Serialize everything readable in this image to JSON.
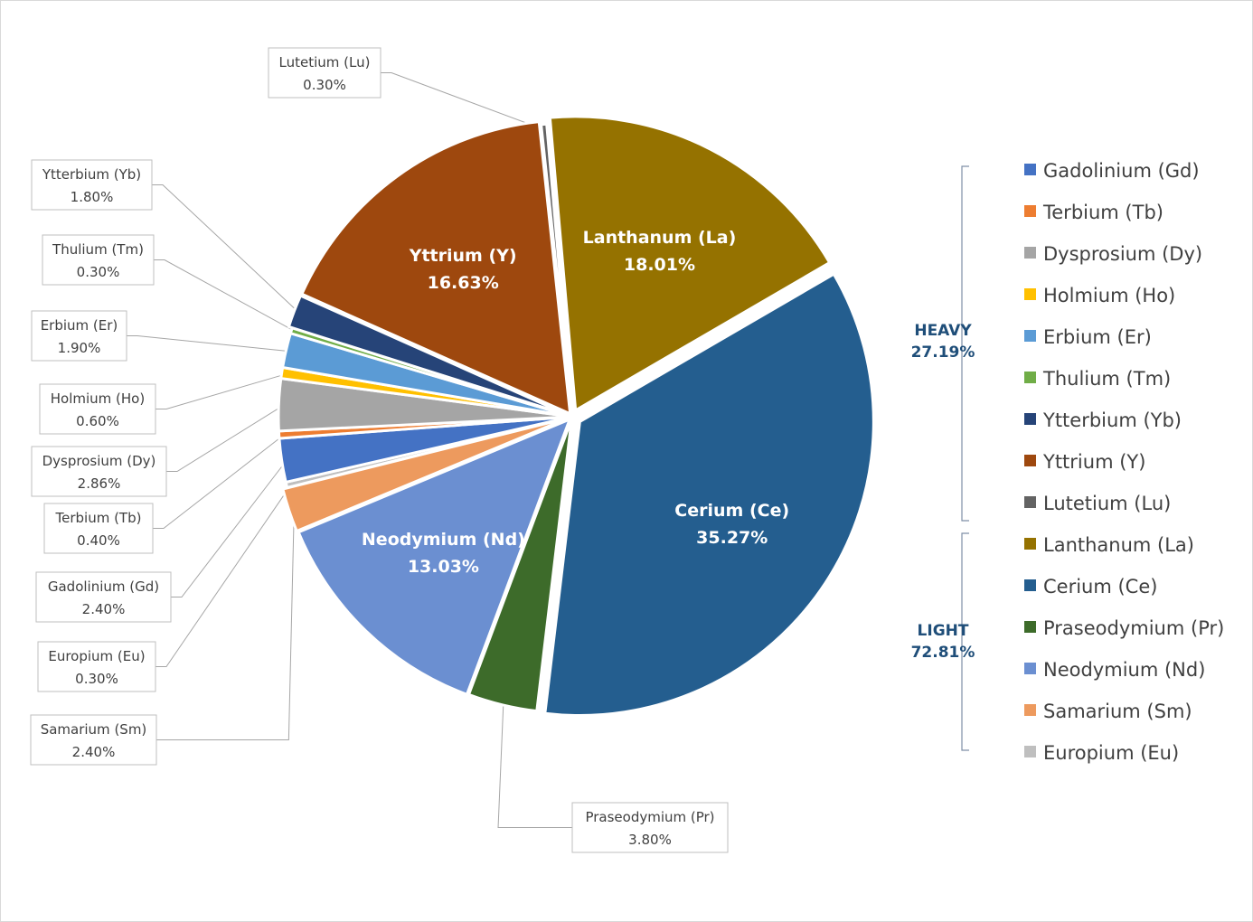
{
  "chart_data": {
    "type": "pie",
    "title": "",
    "unit": "%",
    "slices": [
      {
        "name": "Lanthanum (La)",
        "value": 18.01,
        "display": "18.01%",
        "color": "#957200",
        "label_inside": true,
        "group": "LIGHT"
      },
      {
        "name": "Cerium (Ce)",
        "value": 35.27,
        "display": "35.27%",
        "color": "#245e8f",
        "label_inside": true,
        "group": "LIGHT"
      },
      {
        "name": "Praseodymium (Pr)",
        "value": 3.8,
        "display": "3.80%",
        "color": "#3d6b2a",
        "label_inside": false,
        "group": "LIGHT"
      },
      {
        "name": "Neodymium (Nd)",
        "value": 13.03,
        "display": "13.03%",
        "color": "#6b8fd1",
        "label_inside": true,
        "group": "LIGHT"
      },
      {
        "name": "Samarium (Sm)",
        "value": 2.4,
        "display": "2.40%",
        "color": "#ed9a5e",
        "label_inside": false,
        "group": "LIGHT"
      },
      {
        "name": "Europium (Eu)",
        "value": 0.3,
        "display": "0.30%",
        "color": "#bfbfbf",
        "label_inside": false,
        "group": "LIGHT"
      },
      {
        "name": "Gadolinium (Gd)",
        "value": 2.4,
        "display": "2.40%",
        "color": "#4472c4",
        "label_inside": false,
        "group": "HEAVY"
      },
      {
        "name": "Terbium (Tb)",
        "value": 0.4,
        "display": "0.40%",
        "color": "#ed7d31",
        "label_inside": false,
        "group": "HEAVY"
      },
      {
        "name": "Dysprosium (Dy)",
        "value": 2.86,
        "display": "2.86%",
        "color": "#a5a5a5",
        "label_inside": false,
        "group": "HEAVY"
      },
      {
        "name": "Holmium (Ho)",
        "value": 0.6,
        "display": "0.60%",
        "color": "#ffc000",
        "label_inside": false,
        "group": "HEAVY"
      },
      {
        "name": "Erbium (Er)",
        "value": 1.9,
        "display": "1.90%",
        "color": "#5b9bd5",
        "label_inside": false,
        "group": "HEAVY"
      },
      {
        "name": "Thulium (Tm)",
        "value": 0.3,
        "display": "0.30%",
        "color": "#70ad47",
        "label_inside": false,
        "group": "HEAVY"
      },
      {
        "name": "Ytterbium (Yb)",
        "value": 1.8,
        "display": "1.80%",
        "color": "#264478",
        "label_inside": false,
        "group": "HEAVY"
      },
      {
        "name": "Yttrium (Y)",
        "value": 16.63,
        "display": "16.63%",
        "color": "#9e480e",
        "label_inside": true,
        "group": "HEAVY"
      },
      {
        "name": "Lutetium (Lu)",
        "value": 0.3,
        "display": "0.30%",
        "color": "#636363",
        "label_inside": false,
        "group": "HEAVY"
      }
    ],
    "legend": {
      "placement": "right",
      "entries": [
        "Gadolinium (Gd)",
        "Terbium (Tb)",
        "Dysprosium (Dy)",
        "Holmium (Ho)",
        "Erbium (Er)",
        "Thulium (Tm)",
        "Ytterbium (Yb)",
        "Yttrium (Y)",
        "Lutetium (Lu)",
        "Lanthanum (La)",
        "Cerium (Ce)",
        "Praseodymium (Pr)",
        "Neodymium (Nd)",
        "Samarium (Sm)",
        "Europium (Eu)"
      ]
    },
    "groups": [
      {
        "label": "HEAVY",
        "value": "27.19%",
        "members": [
          "Gadolinium (Gd)",
          "Terbium (Tb)",
          "Dysprosium (Dy)",
          "Holmium (Ho)",
          "Erbium (Er)",
          "Thulium (Tm)",
          "Ytterbium (Yb)",
          "Yttrium (Y)",
          "Lutetium (Lu)"
        ]
      },
      {
        "label": "LIGHT",
        "value": "72.81%",
        "members": [
          "Lanthanum (La)",
          "Cerium (Ce)",
          "Praseodymium (Pr)",
          "Neodymium (Nd)",
          "Samarium (Sm)",
          "Europium (Eu)"
        ]
      }
    ]
  }
}
